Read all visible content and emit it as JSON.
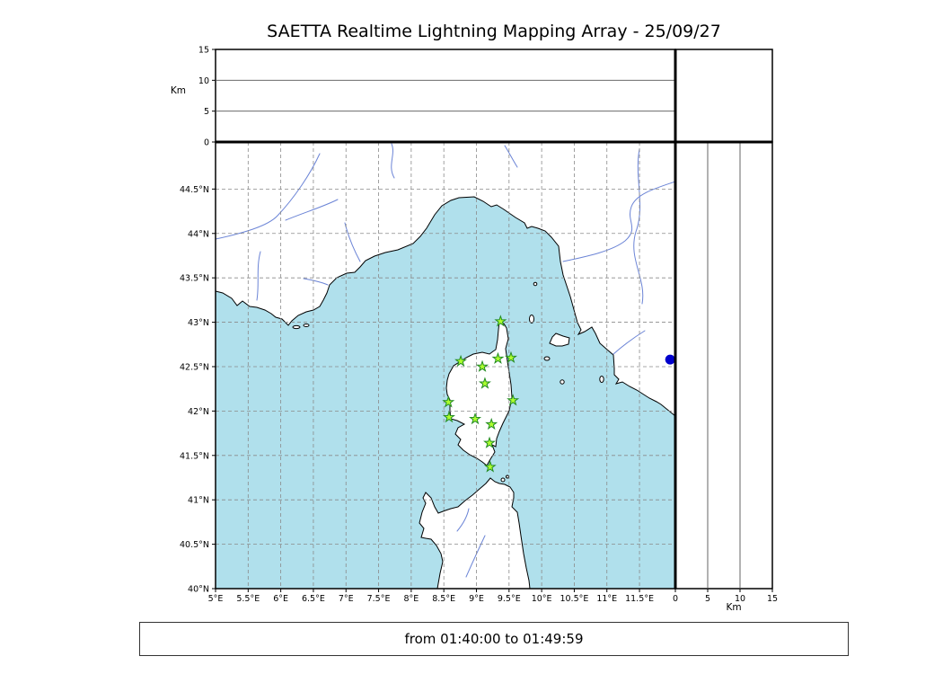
{
  "title": "SAETTA Realtime Lightning Mapping Array - 25/09/27",
  "time_window": "from 01:40:00 to 01:49:59",
  "altitude_axes": {
    "unit_label": "Km",
    "tick_values": [
      0,
      5,
      10,
      15
    ],
    "max_km": 15,
    "gridline_km": [
      5,
      10
    ],
    "has_plotted_data": false
  },
  "map": {
    "extent": {
      "lon_min": 5.0,
      "lon_max": 12.05,
      "lat_min": 40.0,
      "lat_max": 45.03
    },
    "grid_step_deg": 0.5,
    "lon_ticks": [
      {
        "value": 5.0,
        "label": "5°E"
      },
      {
        "value": 5.5,
        "label": "5.5°E"
      },
      {
        "value": 6.0,
        "label": "6°E"
      },
      {
        "value": 6.5,
        "label": "6.5°E"
      },
      {
        "value": 7.0,
        "label": "7°E"
      },
      {
        "value": 7.5,
        "label": "7.5°E"
      },
      {
        "value": 8.0,
        "label": "8°E"
      },
      {
        "value": 8.5,
        "label": "8.5°E"
      },
      {
        "value": 9.0,
        "label": "9°E"
      },
      {
        "value": 9.5,
        "label": "9.5°E"
      },
      {
        "value": 10.0,
        "label": "10°E"
      },
      {
        "value": 10.5,
        "label": "10.5°E"
      },
      {
        "value": 11.0,
        "label": "11°E"
      },
      {
        "value": 11.5,
        "label": "11.5°E"
      }
    ],
    "lat_ticks": [
      {
        "value": 40.0,
        "label": "40°N"
      },
      {
        "value": 40.5,
        "label": "40.5°N"
      },
      {
        "value": 41.0,
        "label": "41°N"
      },
      {
        "value": 41.5,
        "label": "41.5°N"
      },
      {
        "value": 42.0,
        "label": "42°N"
      },
      {
        "value": 42.5,
        "label": "42.5°N"
      },
      {
        "value": 43.0,
        "label": "43°N"
      },
      {
        "value": 43.5,
        "label": "43.5°N"
      },
      {
        "value": 44.0,
        "label": "44°N"
      },
      {
        "value": 44.5,
        "label": "44.5°N"
      }
    ],
    "stations": [
      {
        "lon": 9.37,
        "lat": 43.01
      },
      {
        "lon": 8.76,
        "lat": 42.56
      },
      {
        "lon": 9.09,
        "lat": 42.5
      },
      {
        "lon": 9.33,
        "lat": 42.59
      },
      {
        "lon": 9.53,
        "lat": 42.6
      },
      {
        "lon": 9.13,
        "lat": 42.31
      },
      {
        "lon": 8.57,
        "lat": 42.1
      },
      {
        "lon": 9.56,
        "lat": 42.12
      },
      {
        "lon": 8.58,
        "lat": 41.93
      },
      {
        "lon": 8.98,
        "lat": 41.91
      },
      {
        "lon": 9.23,
        "lat": 41.85
      },
      {
        "lon": 9.2,
        "lat": 41.64
      },
      {
        "lon": 9.21,
        "lat": 41.37
      }
    ],
    "blue_dot": {
      "lon": 11.97,
      "lat": 42.58
    },
    "colors": {
      "sea": "#b0e0ec",
      "land": "#ffffff",
      "coastline": "#000000",
      "river": "#6b84d6",
      "grid": "#8a8a8a",
      "station_fill": "#adff2f",
      "station_stroke": "#228b22",
      "blue_dot": "#0000cc"
    }
  }
}
